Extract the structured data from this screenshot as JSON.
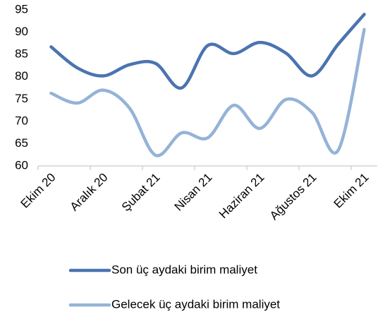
{
  "chart_data": {
    "type": "line",
    "categories": [
      "Ekim 20",
      null,
      "Aralık 20",
      null,
      "Şubat 21",
      null,
      "Nisan 21",
      null,
      "Haziran 21",
      null,
      "Ağustos 21",
      null,
      "Ekim 21"
    ],
    "series": [
      {
        "name": "Son üç aydaki birim maliyet",
        "color": "#4a74b0",
        "values": [
          86.7,
          82,
          80.2,
          82.7,
          83,
          77.5,
          87,
          85.2,
          87.7,
          85.3,
          80.2,
          87.3,
          94
        ]
      },
      {
        "name": "Gelecek üç aydaki birim maliyet",
        "color": "#95b3d7",
        "values": [
          76.3,
          74.1,
          77,
          73,
          62.4,
          67.4,
          66.3,
          73.6,
          68.4,
          74.9,
          72,
          63.5,
          90.6
        ]
      }
    ],
    "ylim": [
      60,
      95
    ],
    "yticks": [
      60,
      65,
      70,
      75,
      80,
      85,
      90,
      95
    ],
    "grid": false,
    "legend": "bottom"
  }
}
